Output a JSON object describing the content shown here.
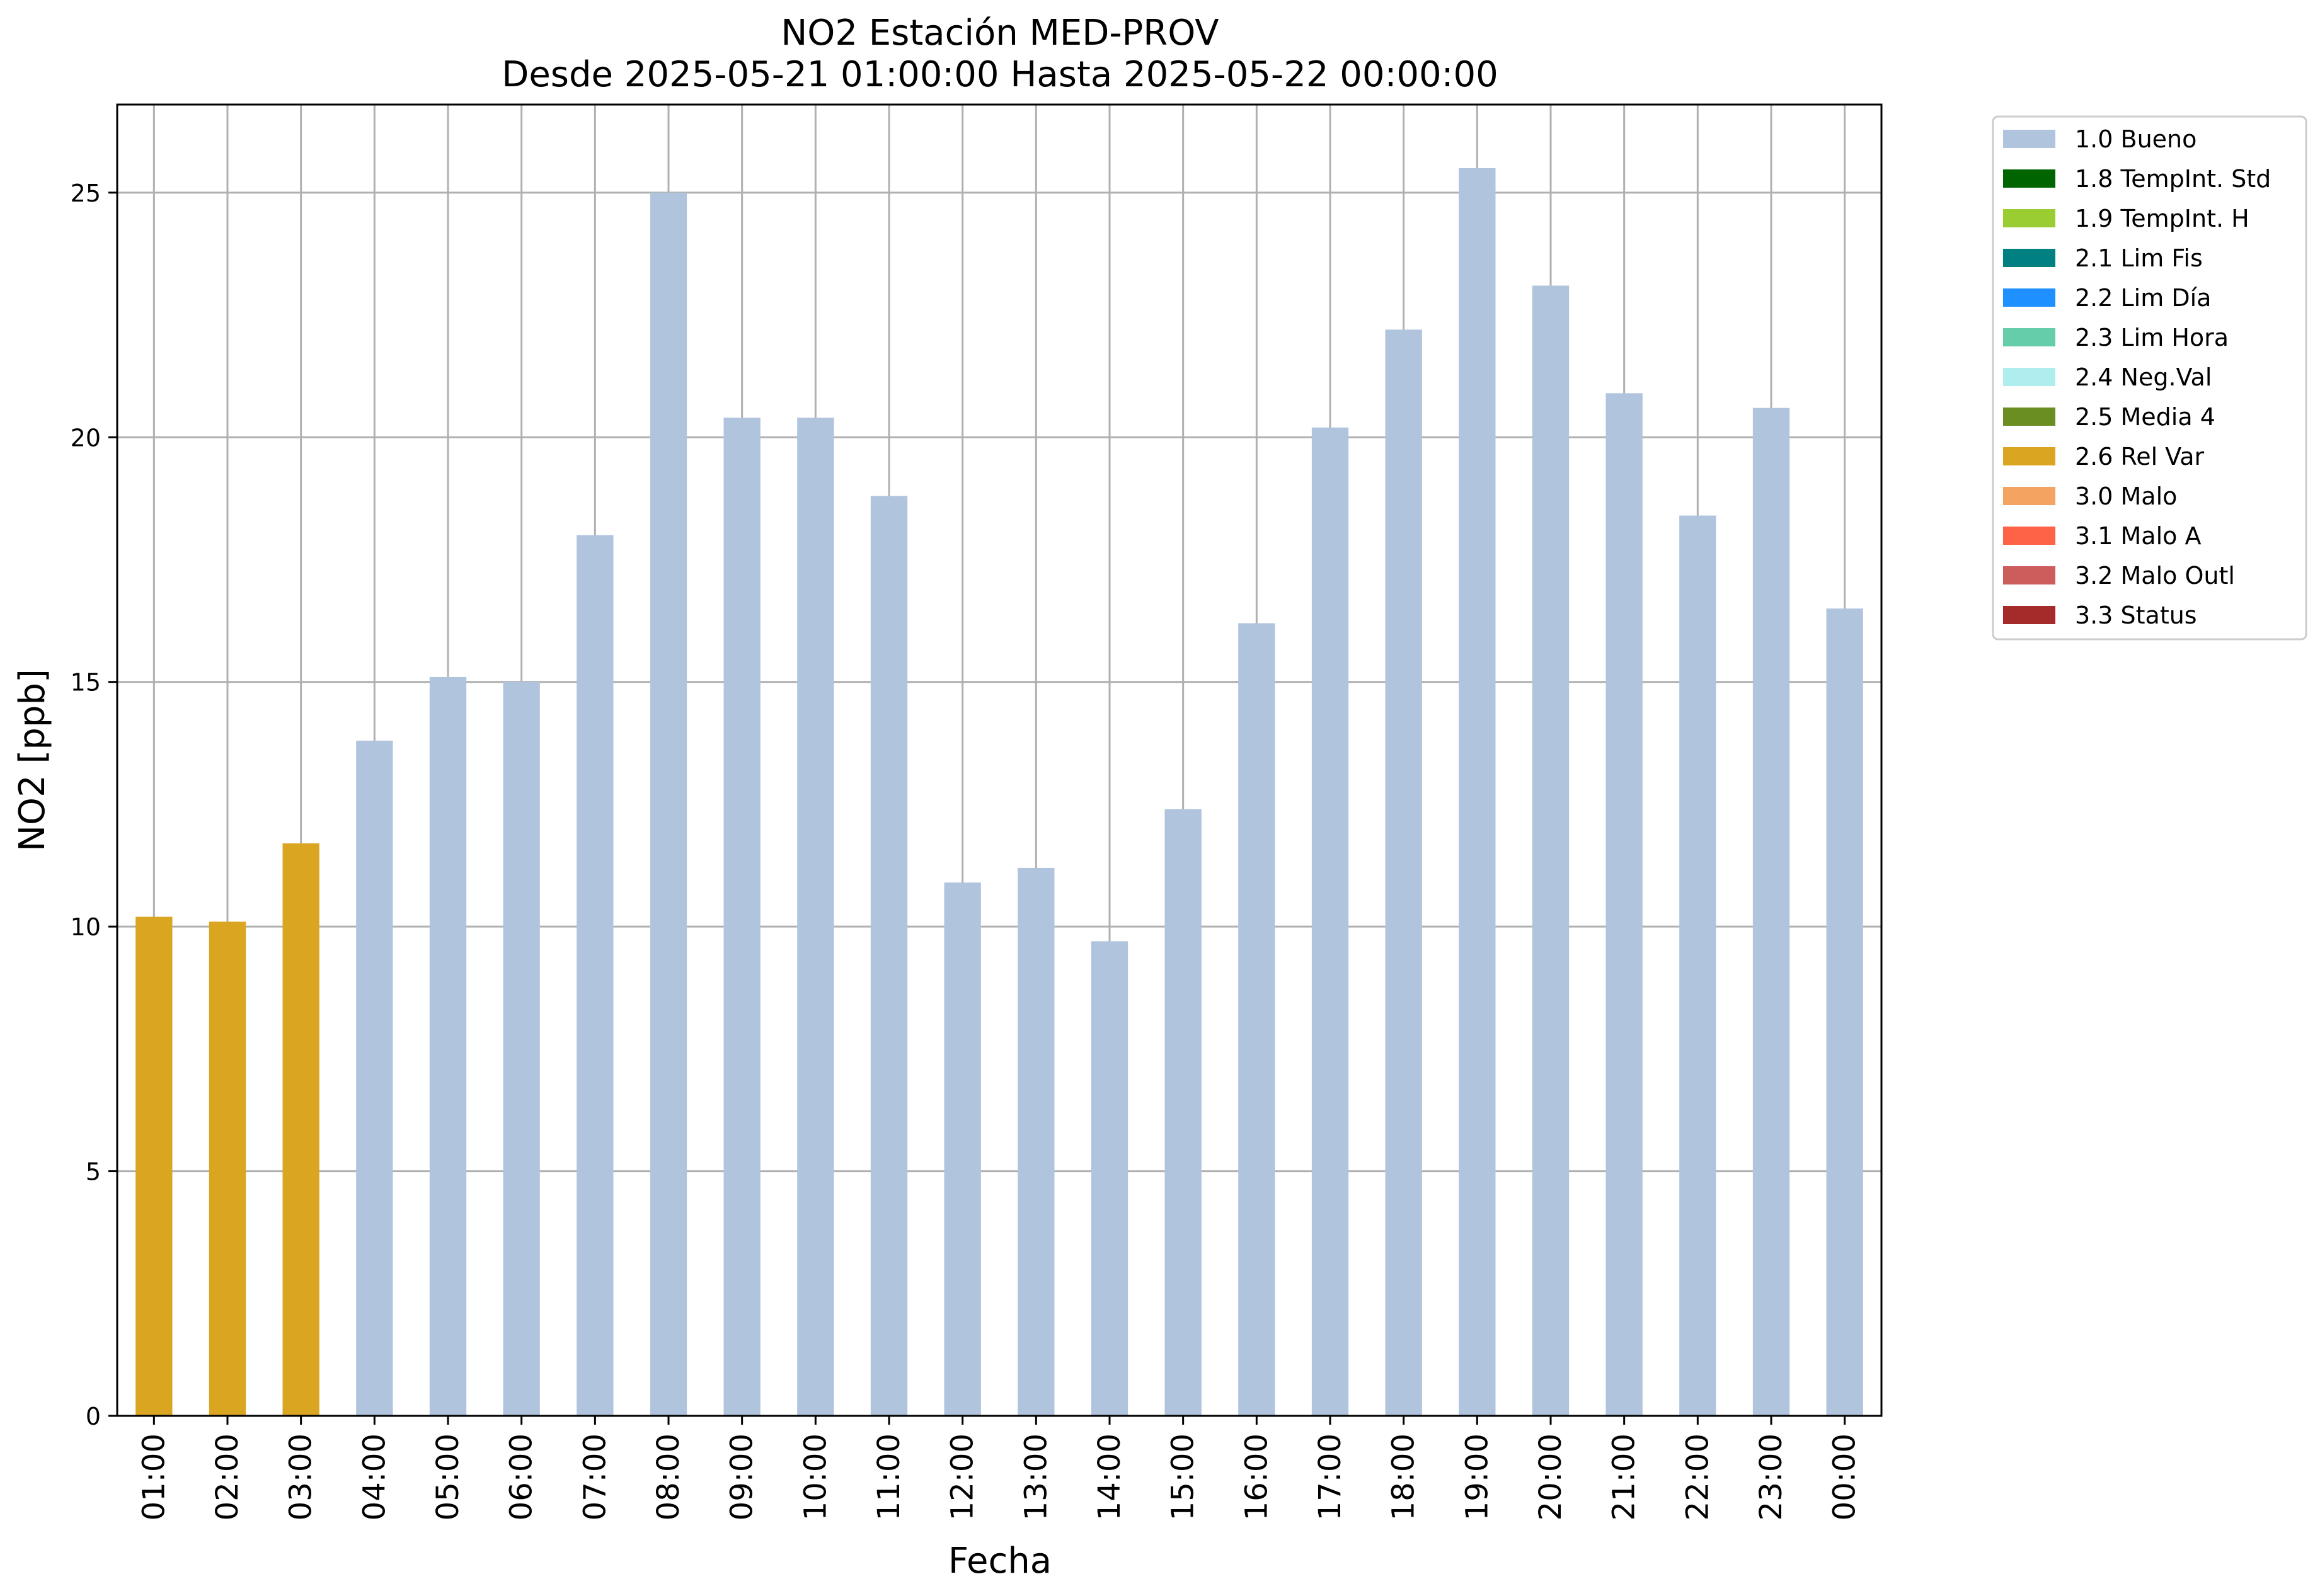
{
  "chart_data": {
    "type": "bar",
    "title": "NO2 Estación MED-PROV",
    "subtitle": "Desde 2025-05-21 01:00:00 Hasta 2025-05-22 00:00:00",
    "xlabel": "Fecha",
    "ylabel": "NO2 [ppb]",
    "ylim": [
      0,
      26.8
    ],
    "yticks": [
      0,
      5,
      10,
      15,
      20,
      25
    ],
    "grid": true,
    "legend_placement": "outside-top-right",
    "categories": [
      "01:00",
      "02:00",
      "03:00",
      "04:00",
      "05:00",
      "06:00",
      "07:00",
      "08:00",
      "09:00",
      "10:00",
      "11:00",
      "12:00",
      "13:00",
      "14:00",
      "15:00",
      "16:00",
      "17:00",
      "18:00",
      "19:00",
      "20:00",
      "21:00",
      "22:00",
      "23:00",
      "00:00"
    ],
    "values": [
      10.2,
      10.1,
      11.7,
      13.8,
      15.1,
      15.0,
      18.0,
      25.0,
      20.4,
      20.4,
      18.8,
      10.9,
      11.2,
      9.7,
      12.4,
      16.2,
      20.2,
      22.2,
      25.5,
      23.1,
      20.9,
      18.4,
      20.6,
      16.5
    ],
    "flags": [
      "2.6",
      "2.6",
      "2.6",
      "1.0",
      "1.0",
      "1.0",
      "1.0",
      "1.0",
      "1.0",
      "1.0",
      "1.0",
      "1.0",
      "1.0",
      "1.0",
      "1.0",
      "1.0",
      "1.0",
      "1.0",
      "1.0",
      "1.0",
      "1.0",
      "1.0",
      "1.0",
      "1.0"
    ],
    "legend": [
      {
        "code": "1.0",
        "label": "1.0 Bueno",
        "color": "#b0c4de"
      },
      {
        "code": "1.8",
        "label": "1.8 TempInt. Std",
        "color": "#006400"
      },
      {
        "code": "1.9",
        "label": "1.9 TempInt. H",
        "color": "#9acd32"
      },
      {
        "code": "2.1",
        "label": "2.1 Lim Fis",
        "color": "#008080"
      },
      {
        "code": "2.2",
        "label": "2.2 Lim Día",
        "color": "#1e90ff"
      },
      {
        "code": "2.3",
        "label": "2.3 Lim Hora",
        "color": "#66cdaa"
      },
      {
        "code": "2.4",
        "label": "2.4 Neg.Val",
        "color": "#afeeee"
      },
      {
        "code": "2.5",
        "label": "2.5 Media 4",
        "color": "#6b8e23"
      },
      {
        "code": "2.6",
        "label": "2.6 Rel Var",
        "color": "#daa520"
      },
      {
        "code": "3.0",
        "label": "3.0 Malo",
        "color": "#f4a460"
      },
      {
        "code": "3.1",
        "label": "3.1 Malo A",
        "color": "#ff6347"
      },
      {
        "code": "3.2",
        "label": "3.2 Malo Outl",
        "color": "#cd5c5c"
      },
      {
        "code": "3.3",
        "label": "3.3 Status",
        "color": "#a52a2a"
      }
    ]
  }
}
